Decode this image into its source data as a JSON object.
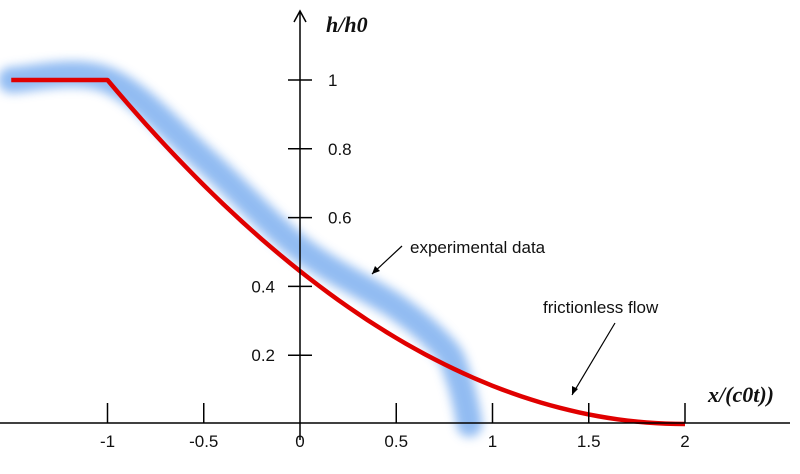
{
  "chart_data": {
    "type": "line",
    "xlabel": "x/(c0t))",
    "ylabel": "h/h0",
    "xlim": [
      -1.5,
      2.4
    ],
    "ylim": [
      0,
      1.2
    ],
    "x_ticks": [
      -1,
      -0.5,
      0,
      0.5,
      1,
      1.5,
      2
    ],
    "x_tick_labels": [
      "-1",
      "-0.5",
      "0",
      "0.5",
      "1",
      "1.5",
      "2"
    ],
    "y_ticks": [
      0.2,
      0.4,
      0.6,
      0.8,
      1
    ],
    "y_tick_labels": [
      "0.2",
      "0.4",
      "0.6",
      "0.8",
      "1"
    ],
    "grid": false,
    "series": [
      {
        "name": "frictionless flow",
        "color": "#e00000",
        "x": [
          -1.5,
          -1,
          -0.75,
          -0.5,
          -0.25,
          0,
          0.25,
          0.5,
          0.75,
          1,
          1.25,
          1.5,
          1.75,
          2
        ],
        "y": [
          1,
          1,
          0.84,
          0.694,
          0.562,
          0.444,
          0.34,
          0.25,
          0.174,
          0.111,
          0.063,
          0.028,
          0.007,
          0
        ]
      },
      {
        "name": "experimental data",
        "color": "#7fb0f0",
        "x": [
          -1.5,
          -1,
          -0.5,
          0,
          0.5,
          0.75,
          0.82,
          0.86,
          0.88
        ],
        "y": [
          1,
          1,
          0.77,
          0.51,
          0.34,
          0.22,
          0.14,
          0.06,
          0
        ]
      }
    ],
    "annotations": [
      "experimental data",
      "frictionless flow"
    ]
  }
}
